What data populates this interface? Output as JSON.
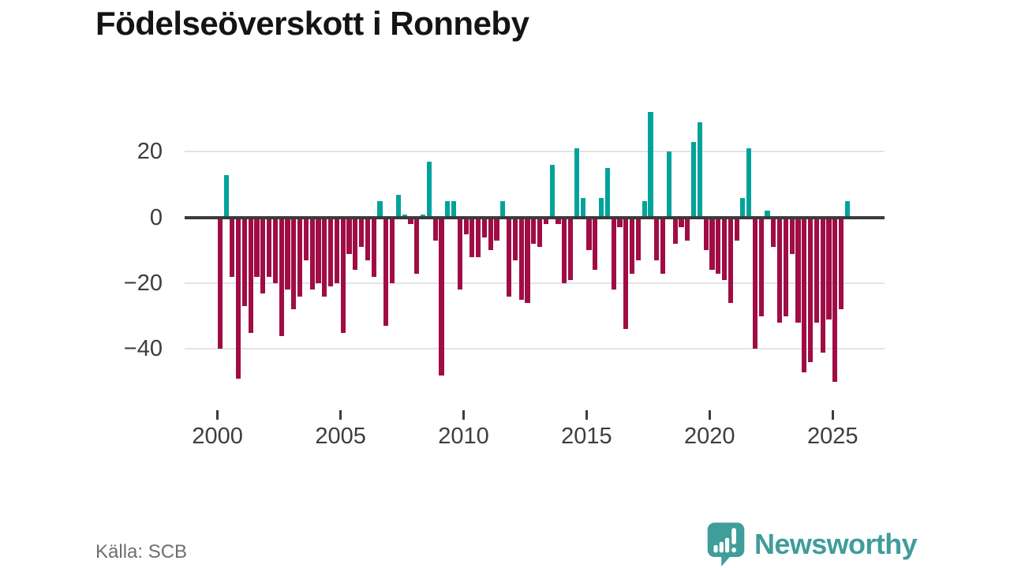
{
  "title": "Födelseöverskott i Ronneby",
  "source": "Källa: SCB",
  "brand": {
    "name": "Newsworthy",
    "icon": "bar-chart-speech-bubble-icon",
    "color": "#3f9d9b"
  },
  "colors": {
    "positive": "#00a39b",
    "negative": "#a00d45",
    "zero_line": "#3b3b3b",
    "gridline": "#e4e4e4",
    "axis_text": "#3d3d3d"
  },
  "chart_data": {
    "type": "bar",
    "title": "Födelseöverskott i Ronneby",
    "x_unit": "quarter",
    "x_start": "2000-Q1",
    "x_end": "2025-Q3",
    "ylim": [
      -55,
      35
    ],
    "grid": true,
    "legend": "none",
    "y_ticks": [
      {
        "value": 20,
        "label": "20"
      },
      {
        "value": 0,
        "label": "0"
      },
      {
        "value": -20,
        "label": "−20"
      },
      {
        "value": -40,
        "label": "−40"
      }
    ],
    "x_ticks": [
      {
        "year": 2000,
        "label": "2000"
      },
      {
        "year": 2005,
        "label": "2005"
      },
      {
        "year": 2010,
        "label": "2010"
      },
      {
        "year": 2015,
        "label": "2015"
      },
      {
        "year": 2020,
        "label": "2020"
      },
      {
        "year": 2025,
        "label": "2025"
      }
    ],
    "values": [
      -40,
      13,
      -18,
      -49,
      -27,
      -35,
      -18,
      -23,
      -18,
      -20,
      -36,
      -22,
      -28,
      -24,
      -13,
      -22,
      -20,
      -24,
      -21,
      -20,
      -35,
      -11,
      -16,
      -9,
      -13,
      -18,
      5,
      -33,
      -20,
      7,
      1,
      -2,
      -17,
      1,
      17,
      -7,
      -48,
      5,
      5,
      -22,
      -5,
      -12,
      -12,
      -6,
      -10,
      -7,
      5,
      -24,
      -13,
      -25,
      -26,
      -8,
      -9,
      -2,
      16,
      -2,
      -20,
      -19,
      21,
      6,
      -10,
      -16,
      6,
      15,
      -22,
      -3,
      -34,
      -17,
      -13,
      5,
      32,
      -13,
      -17,
      20,
      -8,
      -3,
      -7,
      23,
      29,
      -10,
      -16,
      -17,
      -19,
      -26,
      -7,
      6,
      21,
      -40,
      -30,
      2,
      -9,
      -32,
      -30,
      -11,
      -32,
      -47,
      -44,
      -32,
      -41,
      -31,
      -50,
      -28,
      5
    ]
  }
}
